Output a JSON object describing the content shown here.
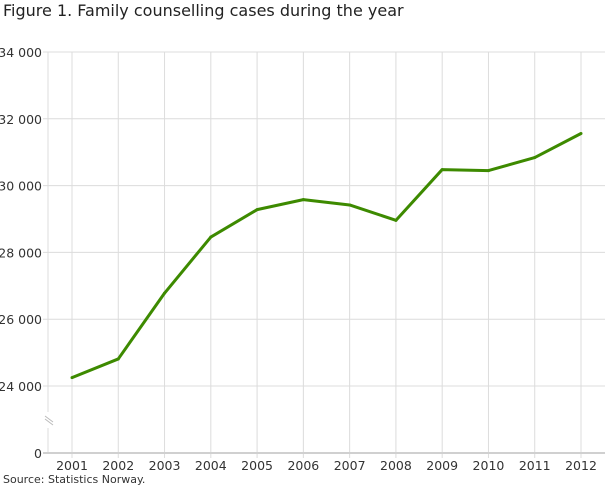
{
  "chart_data": {
    "type": "line",
    "title": "Figure 1. Family counselling cases during the year",
    "source": "Source: Statistics Norway.",
    "xlabel": "",
    "ylabel": "",
    "categories": [
      "2001",
      "2002",
      "2003",
      "2004",
      "2005",
      "2006",
      "2007",
      "2008",
      "2009",
      "2010",
      "2011",
      "2012"
    ],
    "series": [
      {
        "name": "Family counselling cases",
        "color": "#3d8a00",
        "values": [
          24250,
          24810,
          26780,
          28460,
          29280,
          29580,
          29420,
          28960,
          30480,
          30450,
          30840,
          31560
        ]
      }
    ],
    "y_ticks": [
      {
        "value": 0,
        "label": "0"
      },
      {
        "value": 24000,
        "label": "24 000"
      },
      {
        "value": 26000,
        "label": "26 000"
      },
      {
        "value": 28000,
        "label": "28 000"
      },
      {
        "value": 30000,
        "label": "30 000"
      },
      {
        "value": 32000,
        "label": "32 000"
      },
      {
        "value": 34000,
        "label": "34 000"
      }
    ],
    "ylim": [
      24000,
      34000
    ],
    "axis_break": true,
    "grid": true,
    "grid_color": "#dcdcdc"
  }
}
